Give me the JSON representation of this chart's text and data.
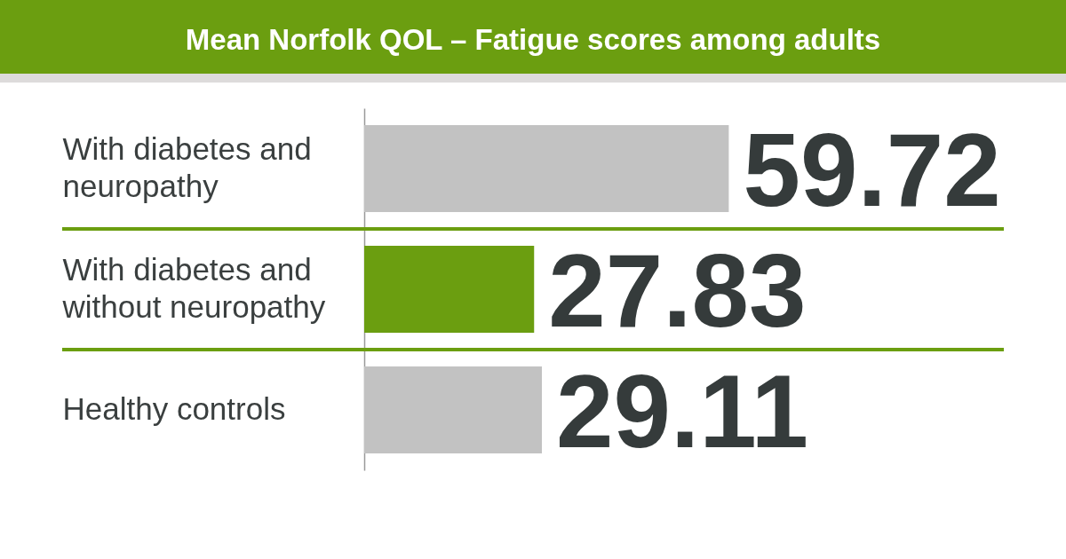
{
  "chart_data": {
    "type": "bar",
    "orientation": "horizontal",
    "title": "Mean Norfolk QOL – Fatigue scores among adults",
    "categories": [
      "With diabetes and neuropathy",
      "With diabetes and without neuropathy",
      "Healthy controls"
    ],
    "values": [
      59.72,
      27.83,
      29.11
    ],
    "colors": [
      "#c2c2c2",
      "#6b9e10",
      "#c2c2c2"
    ],
    "data_labels": true,
    "legend": false,
    "tick_labels": "y"
  }
}
